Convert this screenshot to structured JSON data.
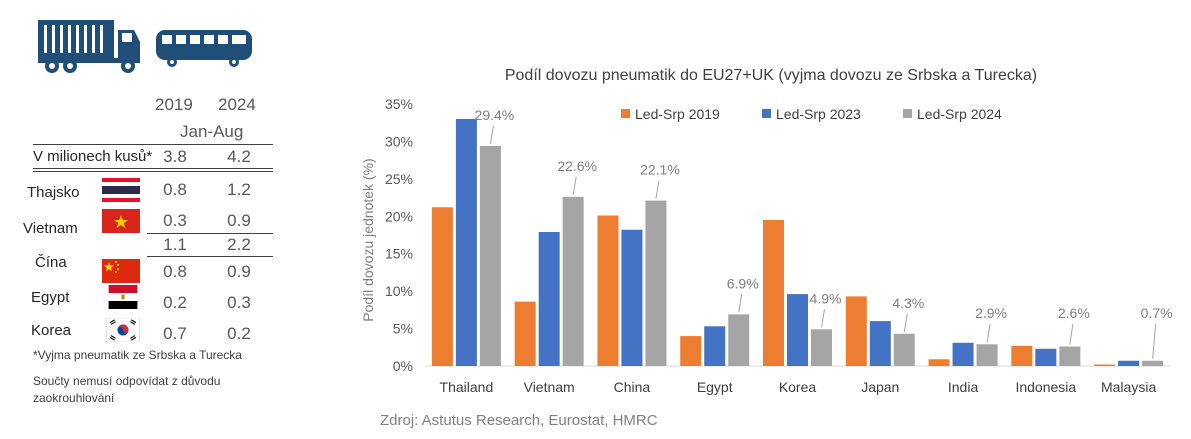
{
  "table": {
    "years": [
      "2019",
      "2024"
    ],
    "period": "Jan-Aug",
    "total_label": "V milionech kusů*",
    "total_values": [
      "3.8",
      "4.2"
    ],
    "rows": [
      {
        "country": "Thajsko",
        "values": [
          "0.8",
          "1.2"
        ],
        "flag": "thailand-flag"
      },
      {
        "country": "Vietnam",
        "values": [
          "0.3",
          "0.9"
        ],
        "flag": "vietnam-flag"
      },
      {
        "country": "",
        "values": [
          "1.1",
          "2.2"
        ],
        "flag": ""
      },
      {
        "country": "Čína",
        "values": [
          "0.8",
          "0.9"
        ],
        "flag": "china-flag"
      },
      {
        "country": "Egypt",
        "values": [
          "0.2",
          "0.3"
        ],
        "flag": "egypt-flag"
      },
      {
        "country": "Korea",
        "values": [
          "0.7",
          "0.2"
        ],
        "flag": "korea-flag"
      }
    ],
    "footnote1": "*Vyjma pneumatik ze Srbska a Turecka",
    "footnote2a": "Součty nemusí odpovídat z důvodu",
    "footnote2b": "zaokrouhlování"
  },
  "icons": [
    "truck-icon",
    "bus-icon"
  ],
  "colors": {
    "icon_navy": "#1f4e79",
    "s2019": "#ed7d31",
    "s2023": "#4472c4",
    "s2024": "#a5a5a5"
  },
  "source": "Zdroj: Astutus Research, Eurostat, HMRC",
  "chart_data": {
    "type": "bar",
    "title": "Podíl dovozu pneumatik do EU27+UK (vyjma dovozu ze Srbska a Turecka)",
    "ylabel": "Podíl dovozu jednotek (%)",
    "xlabel": "",
    "ylim": [
      0,
      35
    ],
    "yticks": [
      "0%",
      "5%",
      "10%",
      "15%",
      "20%",
      "25%",
      "30%",
      "35%"
    ],
    "categories": [
      "Thailand",
      "Vietnam",
      "China",
      "Egypt",
      "Korea",
      "Japan",
      "India",
      "Indonesia",
      "Malaysia"
    ],
    "series": [
      {
        "name": "Led-Srp 2019",
        "values": [
          21.2,
          8.6,
          20.1,
          4.0,
          19.5,
          9.3,
          0.9,
          2.7,
          0.2
        ]
      },
      {
        "name": "Led-Srp 2023",
        "values": [
          33.0,
          17.9,
          18.2,
          5.3,
          9.6,
          6.0,
          3.1,
          2.3,
          0.7
        ]
      },
      {
        "name": "Led-Srp 2024",
        "values": [
          29.4,
          22.6,
          22.1,
          6.9,
          4.9,
          4.3,
          2.9,
          2.6,
          0.7
        ]
      }
    ],
    "data_labels": [
      "29.4%",
      "22.6%",
      "22.1%",
      "6.9%",
      "4.9%",
      "4.3%",
      "2.9%",
      "2.6%",
      "0.7%"
    ],
    "legend": "top",
    "grid": false
  }
}
